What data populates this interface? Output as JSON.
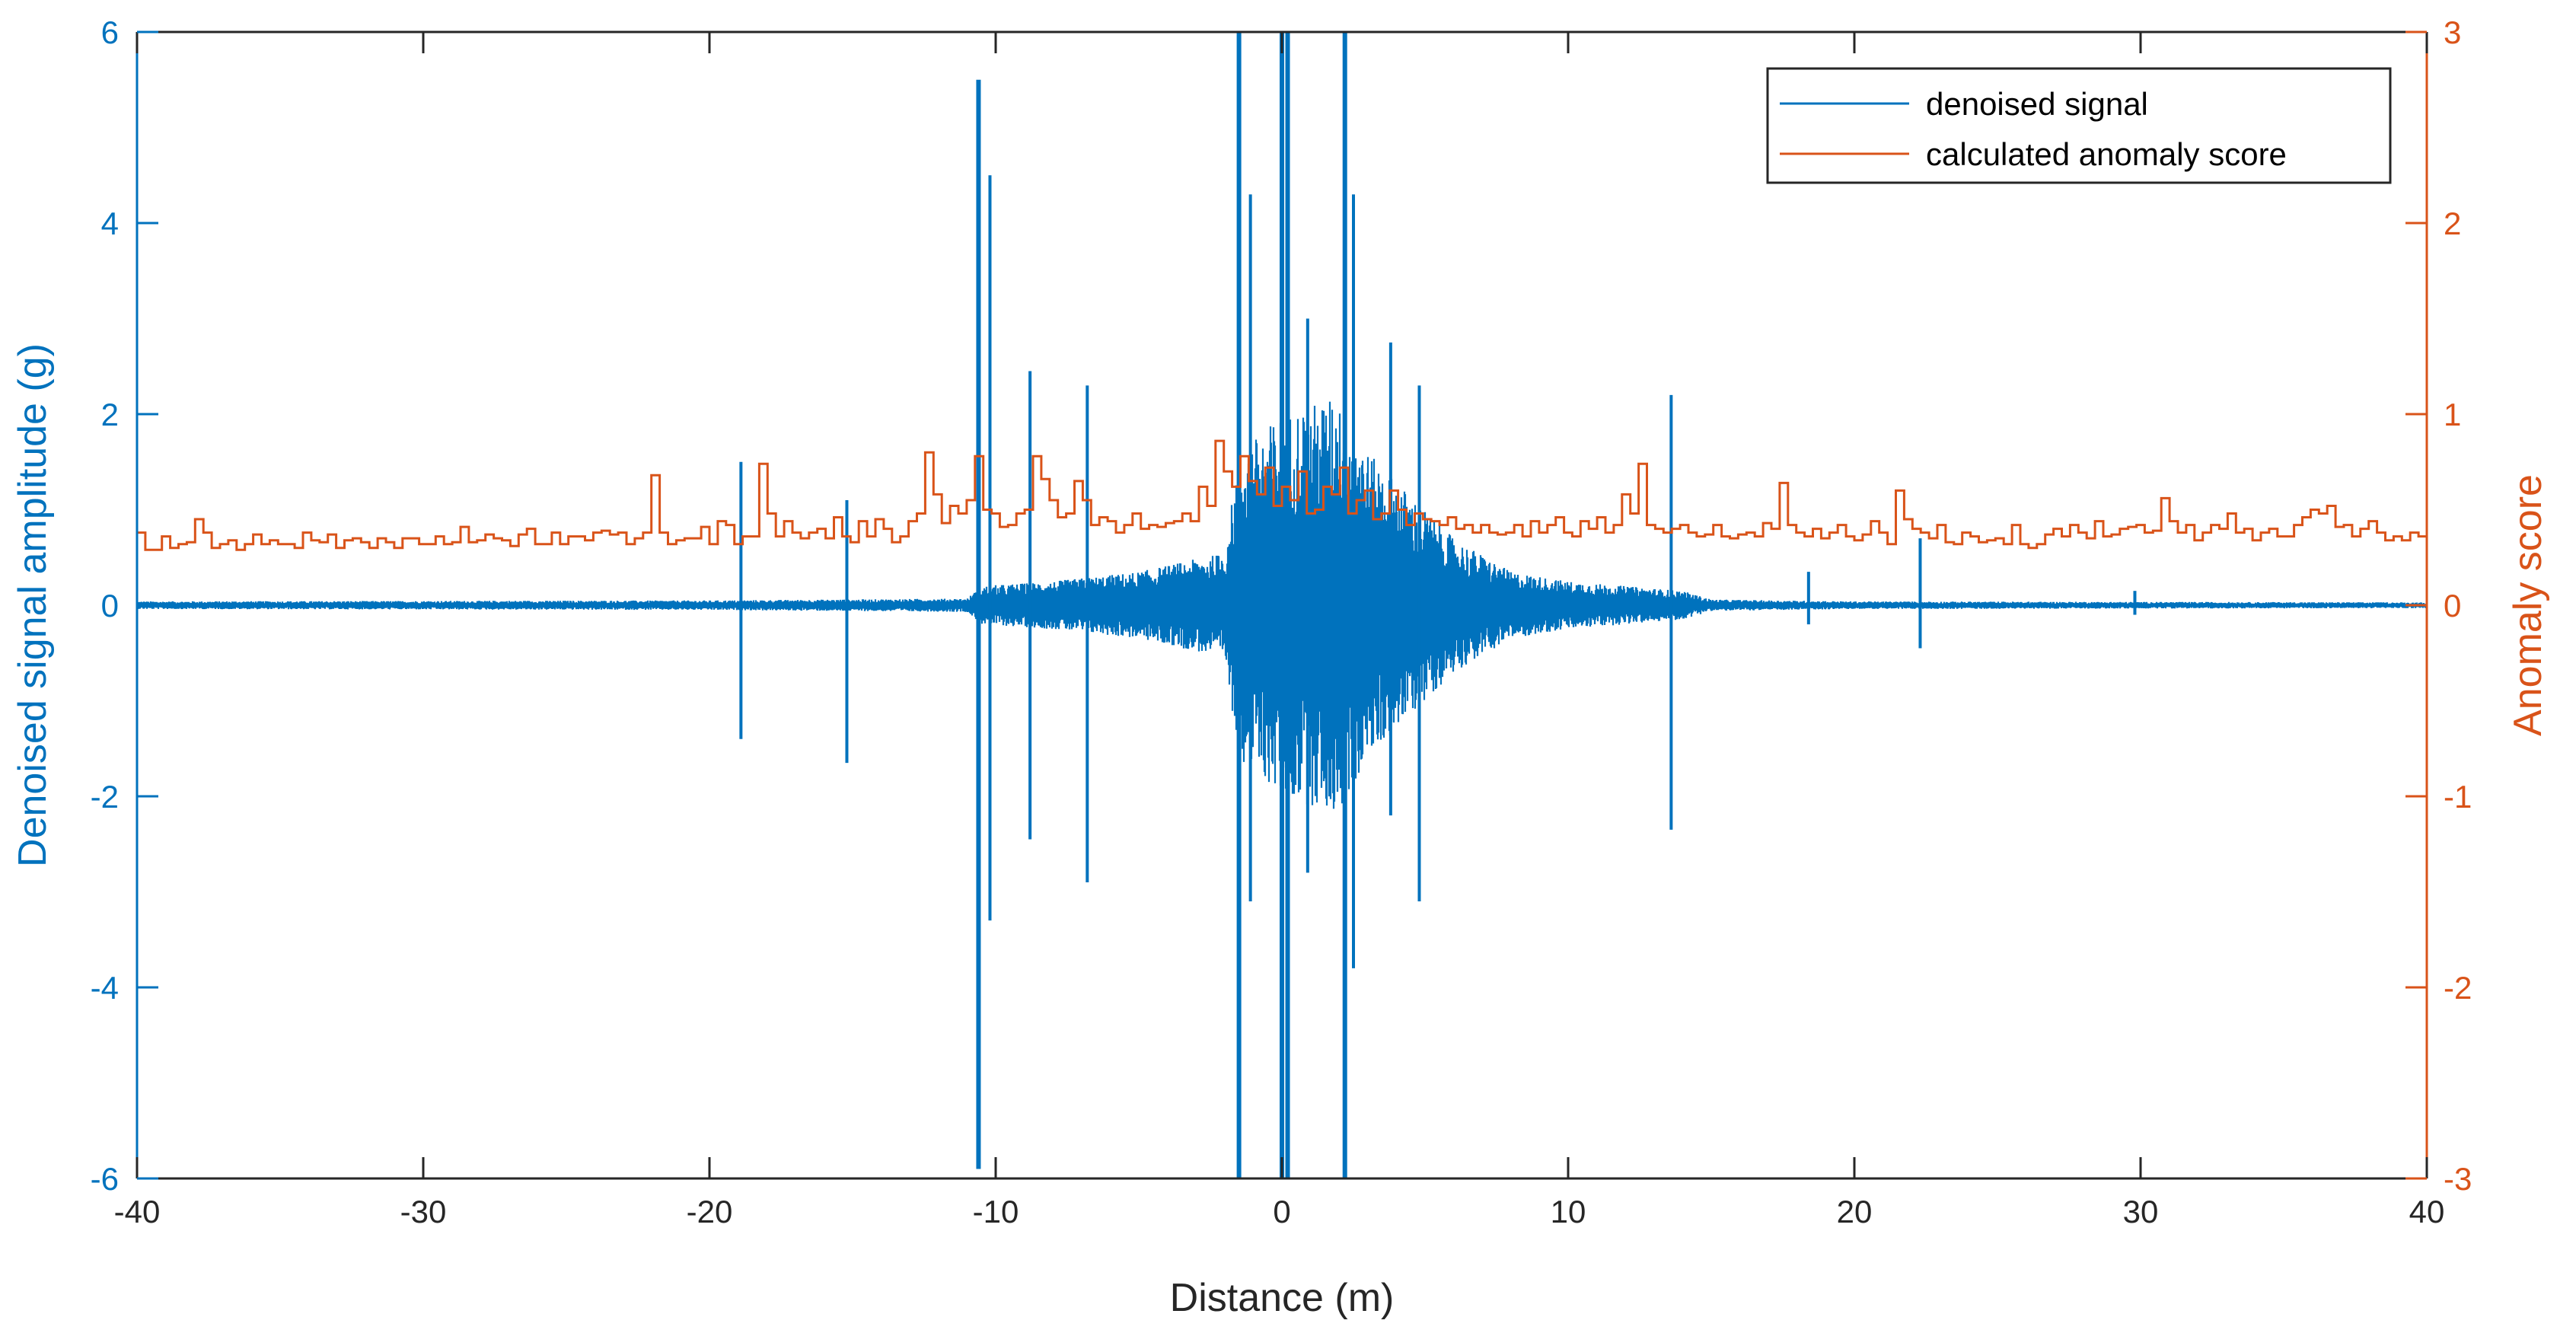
{
  "colors": {
    "signal": "#0072BD",
    "anomaly": "#D95319",
    "axis": "#262626",
    "background": "#ffffff"
  },
  "chart_data": {
    "type": "line",
    "title": "",
    "xlabel": "Distance (m)",
    "ylabel_left": "Denoised signal amplitude (g)",
    "ylabel_right": "Anomaly score",
    "xlim": [
      -40,
      40
    ],
    "ylim_left": [
      -6,
      6
    ],
    "ylim_right": [
      -3,
      3
    ],
    "x_ticks": [
      "-40",
      "-30",
      "-20",
      "-10",
      "0",
      "10",
      "20",
      "30",
      "40"
    ],
    "y_left_ticks": [
      "6",
      "4",
      "2",
      "0",
      "-2",
      "-4",
      "-6"
    ],
    "y_right_ticks": [
      "3",
      "2",
      "1",
      "0",
      "-1",
      "-2",
      "-3"
    ],
    "grid": false,
    "legend_position": "top-right",
    "legend": [
      "denoised signal",
      "calculated anomaly score"
    ],
    "series": [
      {
        "name": "denoised signal",
        "axis": "left",
        "noise_envelope": [
          [
            -40,
            0.04
          ],
          [
            -20,
            0.05
          ],
          [
            -11,
            0.07
          ],
          [
            -10.5,
            0.2
          ],
          [
            -8,
            0.25
          ],
          [
            -5,
            0.35
          ],
          [
            -2,
            0.55
          ],
          [
            -1.5,
            1.6
          ],
          [
            0,
            2.0
          ],
          [
            2,
            2.2
          ],
          [
            3,
            1.6
          ],
          [
            4,
            1.3
          ],
          [
            5,
            1.0
          ],
          [
            6,
            0.7
          ],
          [
            8,
            0.35
          ],
          [
            10,
            0.25
          ],
          [
            12,
            0.2
          ],
          [
            14,
            0.15
          ],
          [
            15,
            0.06
          ],
          [
            20,
            0.04
          ],
          [
            40,
            0.03
          ]
        ],
        "spikes": [
          {
            "x": -18.9,
            "min": -1.4,
            "max": 1.5
          },
          {
            "x": -15.2,
            "min": -1.65,
            "max": 1.1
          },
          {
            "x": -10.6,
            "min": -5.9,
            "max": 5.5
          },
          {
            "x": -10.2,
            "min": -3.3,
            "max": 4.5
          },
          {
            "x": -8.8,
            "min": -2.45,
            "max": 2.45
          },
          {
            "x": -6.8,
            "min": -2.9,
            "max": 2.3
          },
          {
            "x": -1.5,
            "min": -6.0,
            "max": 6.0
          },
          {
            "x": -1.1,
            "min": -3.1,
            "max": 4.3
          },
          {
            "x": 0.0,
            "min": -6.0,
            "max": 6.0
          },
          {
            "x": 0.2,
            "min": -6.0,
            "max": 6.0
          },
          {
            "x": 0.9,
            "min": -2.8,
            "max": 3.0
          },
          {
            "x": 2.2,
            "min": -6.0,
            "max": 6.0
          },
          {
            "x": 2.5,
            "min": -3.8,
            "max": 4.3
          },
          {
            "x": 3.8,
            "min": -2.2,
            "max": 2.75
          },
          {
            "x": 4.8,
            "min": -3.1,
            "max": 2.3
          },
          {
            "x": 13.6,
            "min": -2.35,
            "max": 2.2
          },
          {
            "x": 18.4,
            "min": -0.2,
            "max": 0.35
          },
          {
            "x": 22.3,
            "min": -0.45,
            "max": 0.7
          },
          {
            "x": 29.8,
            "min": -0.1,
            "max": 0.15
          }
        ]
      },
      {
        "name": "calculated anomaly score",
        "axis": "right",
        "step_edges": [
          -40,
          40
        ],
        "values": [
          0.38,
          0.29,
          0.29,
          0.36,
          0.3,
          0.32,
          0.33,
          0.45,
          0.38,
          0.3,
          0.32,
          0.34,
          0.29,
          0.32,
          0.37,
          0.32,
          0.34,
          0.32,
          0.32,
          0.3,
          0.38,
          0.34,
          0.33,
          0.37,
          0.3,
          0.34,
          0.35,
          0.33,
          0.3,
          0.35,
          0.33,
          0.3,
          0.35,
          0.35,
          0.32,
          0.32,
          0.36,
          0.32,
          0.33,
          0.41,
          0.33,
          0.34,
          0.37,
          0.35,
          0.34,
          0.31,
          0.37,
          0.4,
          0.32,
          0.32,
          0.38,
          0.32,
          0.36,
          0.36,
          0.34,
          0.38,
          0.39,
          0.37,
          0.38,
          0.32,
          0.35,
          0.38,
          0.68,
          0.38,
          0.32,
          0.34,
          0.35,
          0.35,
          0.41,
          0.32,
          0.44,
          0.42,
          0.32,
          0.36,
          0.36,
          0.74,
          0.48,
          0.36,
          0.44,
          0.38,
          0.35,
          0.38,
          0.4,
          0.35,
          0.46,
          0.36,
          0.33,
          0.44,
          0.36,
          0.45,
          0.4,
          0.33,
          0.36,
          0.44,
          0.48,
          0.8,
          0.58,
          0.43,
          0.52,
          0.48,
          0.55,
          0.78,
          0.5,
          0.48,
          0.41,
          0.42,
          0.48,
          0.5,
          0.78,
          0.66,
          0.55,
          0.46,
          0.48,
          0.65,
          0.55,
          0.42,
          0.46,
          0.44,
          0.38,
          0.42,
          0.48,
          0.4,
          0.42,
          0.41,
          0.43,
          0.44,
          0.48,
          0.44,
          0.62,
          0.52,
          0.86,
          0.7,
          0.62,
          0.78,
          0.65,
          0.58,
          0.72,
          0.52,
          0.62,
          0.55,
          0.7,
          0.48,
          0.5,
          0.62,
          0.58,
          0.72,
          0.48,
          0.55,
          0.6,
          0.45,
          0.48,
          0.6,
          0.5,
          0.42,
          0.48,
          0.45,
          0.44,
          0.42,
          0.46,
          0.4,
          0.42,
          0.38,
          0.42,
          0.38,
          0.37,
          0.38,
          0.42,
          0.36,
          0.44,
          0.38,
          0.42,
          0.46,
          0.38,
          0.36,
          0.44,
          0.4,
          0.46,
          0.38,
          0.42,
          0.58,
          0.48,
          0.74,
          0.42,
          0.4,
          0.38,
          0.4,
          0.42,
          0.38,
          0.36,
          0.37,
          0.42,
          0.36,
          0.35,
          0.37,
          0.38,
          0.36,
          0.43,
          0.4,
          0.64,
          0.42,
          0.38,
          0.36,
          0.4,
          0.35,
          0.38,
          0.42,
          0.36,
          0.34,
          0.37,
          0.44,
          0.38,
          0.32,
          0.6,
          0.45,
          0.4,
          0.38,
          0.35,
          0.42,
          0.33,
          0.32,
          0.38,
          0.36,
          0.33,
          0.34,
          0.35,
          0.32,
          0.42,
          0.32,
          0.3,
          0.32,
          0.37,
          0.4,
          0.36,
          0.42,
          0.38,
          0.35,
          0.44,
          0.36,
          0.37,
          0.4,
          0.41,
          0.42,
          0.38,
          0.39,
          0.56,
          0.44,
          0.38,
          0.42,
          0.34,
          0.38,
          0.42,
          0.4,
          0.48,
          0.38,
          0.4,
          0.34,
          0.38,
          0.4,
          0.36,
          0.36,
          0.42,
          0.46,
          0.5,
          0.48,
          0.52,
          0.41,
          0.42,
          0.36,
          0.4,
          0.44,
          0.38,
          0.34,
          0.36,
          0.34,
          0.38,
          0.36
        ]
      }
    ]
  }
}
